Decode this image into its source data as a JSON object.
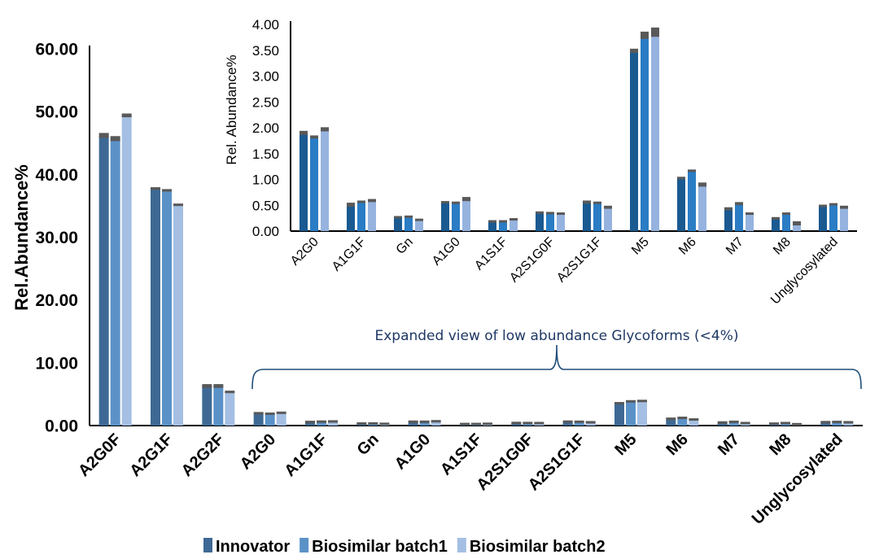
{
  "chart_data": [
    {
      "type": "bar",
      "ylabel": "Rel.Abundance%",
      "ylim": [
        0,
        60
      ],
      "yticks": [
        "0.00",
        "10.00",
        "20.00",
        "30.00",
        "40.00",
        "50.00",
        "60.00"
      ],
      "categories": [
        "A2G0F",
        "A2G1F",
        "A2G2F",
        "A2G0",
        "A1G1F",
        "Gn",
        "A1G0",
        "A1S1F",
        "A2S1G0F",
        "A2S1G1F",
        "M5",
        "M6",
        "M7",
        "M8",
        "Unglycosylated"
      ],
      "series": [
        {
          "name": "Innovator",
          "color": "#3e6994",
          "values": [
            46.2,
            37.7,
            6.3,
            1.9,
            0.51,
            0.26,
            0.55,
            0.18,
            0.35,
            0.56,
            3.49,
            1.02,
            0.43,
            0.24,
            0.48
          ],
          "errors": [
            0.4,
            0.2,
            0.3,
            0.05,
            0.04,
            0.02,
            0.02,
            0.02,
            0.02,
            0.03,
            0.04,
            0.02,
            0.03,
            0.02,
            0.02
          ]
        },
        {
          "name": "Biosimilar batch1",
          "color": "#5a92c8",
          "values": [
            45.7,
            37.4,
            6.3,
            1.82,
            0.56,
            0.27,
            0.54,
            0.18,
            0.34,
            0.54,
            3.79,
            1.16,
            0.53,
            0.33,
            0.51
          ],
          "errors": [
            0.4,
            0.2,
            0.3,
            0.04,
            0.02,
            0.02,
            0.02,
            0.02,
            0.02,
            0.02,
            0.07,
            0.02,
            0.03,
            0.02,
            0.02
          ]
        },
        {
          "name": "Biosimilar batch2",
          "color": "#a4bfe3",
          "values": [
            49.4,
            35.1,
            5.3,
            1.97,
            0.59,
            0.21,
            0.62,
            0.22,
            0.33,
            0.46,
            3.85,
            0.9,
            0.33,
            0.15,
            0.46
          ],
          "errors": [
            0.3,
            0.2,
            0.2,
            0.04,
            0.03,
            0.02,
            0.04,
            0.02,
            0.02,
            0.03,
            0.09,
            0.04,
            0.02,
            0.04,
            0.03
          ]
        }
      ],
      "legend": "bottom",
      "annotation": "Expanded view of low abundance Glycoforms (<4%)"
    },
    {
      "type": "bar",
      "ylabel": "Rel. Abundance%",
      "ylim": [
        0,
        4
      ],
      "yticks": [
        "0.00",
        "0.50",
        "1.00",
        "1.50",
        "2.00",
        "2.50",
        "3.00",
        "3.50",
        "4.00"
      ],
      "categories": [
        "A2G0",
        "A1G1F",
        "Gn",
        "A1G0",
        "A1S1F",
        "A2S1G0F",
        "A2S1G1F",
        "M5",
        "M6",
        "M7",
        "M8",
        "Unglycosylated"
      ],
      "series": [
        {
          "color": "#1a5a91",
          "values": [
            1.9,
            0.51,
            0.26,
            0.55,
            0.18,
            0.35,
            0.56,
            3.49,
            1.02,
            0.43,
            0.24,
            0.48
          ],
          "errors": [
            0.04,
            0.04,
            0.02,
            0.02,
            0.02,
            0.02,
            0.03,
            0.04,
            0.02,
            0.03,
            0.02,
            0.02
          ]
        },
        {
          "color": "#2a7cc4",
          "values": [
            1.82,
            0.56,
            0.27,
            0.54,
            0.18,
            0.34,
            0.54,
            3.79,
            1.16,
            0.53,
            0.33,
            0.51
          ],
          "errors": [
            0.03,
            0.02,
            0.02,
            0.02,
            0.02,
            0.02,
            0.02,
            0.07,
            0.02,
            0.03,
            0.02,
            0.02
          ]
        },
        {
          "color": "#96b3df",
          "values": [
            1.97,
            0.59,
            0.21,
            0.62,
            0.22,
            0.33,
            0.46,
            3.85,
            0.9,
            0.33,
            0.15,
            0.46
          ],
          "errors": [
            0.04,
            0.03,
            0.02,
            0.04,
            0.02,
            0.02,
            0.03,
            0.09,
            0.04,
            0.02,
            0.04,
            0.03
          ]
        }
      ]
    }
  ]
}
